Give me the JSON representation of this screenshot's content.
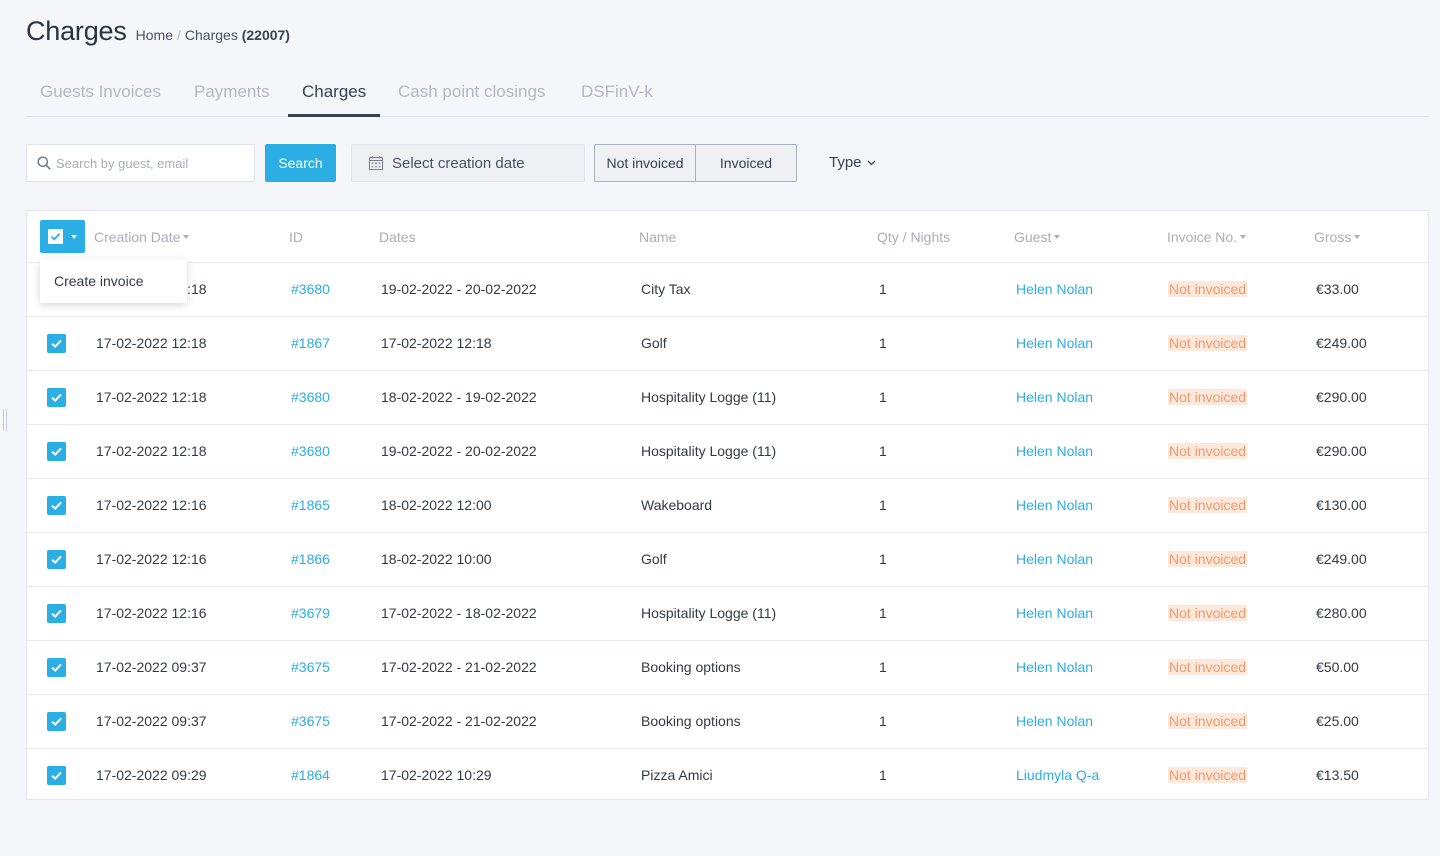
{
  "page": {
    "title": "Charges"
  },
  "breadcrumb": {
    "home": "Home",
    "separator": "/",
    "current": "Charges",
    "count": "(22007)"
  },
  "tabs": [
    {
      "label": "Guests Invoices",
      "active": false
    },
    {
      "label": "Payments",
      "active": false
    },
    {
      "label": "Charges",
      "active": true
    },
    {
      "label": "Cash point closings",
      "active": false
    },
    {
      "label": "DSFinV-k",
      "active": false
    }
  ],
  "toolbar": {
    "search_placeholder": "Search by guest, email",
    "search_label": "Search",
    "date_label": "Select creation date",
    "filter_not_invoiced": "Not invoiced",
    "filter_invoiced": "Invoiced",
    "type_label": "Type"
  },
  "table": {
    "columns": {
      "creation_date": "Creation Date",
      "id": "ID",
      "dates": "Dates",
      "name": "Name",
      "qty": "Qty / Nights",
      "guest": "Guest",
      "invoice_no": "Invoice No.",
      "gross": "Gross"
    },
    "bulk_menu": {
      "create_invoice": "Create invoice"
    },
    "rows": [
      {
        "checked": true,
        "created": "17-02-2022 12:18",
        "id": "#3680",
        "dates": "19-02-2022 - 20-02-2022",
        "name": "City Tax",
        "qty": "1",
        "guest": "Helen Nolan",
        "invoice": "Not invoiced",
        "gross": "€33.00"
      },
      {
        "checked": true,
        "created": "17-02-2022 12:18",
        "id": "#1867",
        "dates": "17-02-2022 12:18",
        "name": "Golf",
        "qty": "1",
        "guest": "Helen Nolan",
        "invoice": "Not invoiced",
        "gross": "€249.00"
      },
      {
        "checked": true,
        "created": "17-02-2022 12:18",
        "id": "#3680",
        "dates": "18-02-2022 - 19-02-2022",
        "name": "Hospitality Logge (11)",
        "qty": "1",
        "guest": "Helen Nolan",
        "invoice": "Not invoiced",
        "gross": "€290.00"
      },
      {
        "checked": true,
        "created": "17-02-2022 12:18",
        "id": "#3680",
        "dates": "19-02-2022 - 20-02-2022",
        "name": "Hospitality Logge (11)",
        "qty": "1",
        "guest": "Helen Nolan",
        "invoice": "Not invoiced",
        "gross": "€290.00"
      },
      {
        "checked": true,
        "created": "17-02-2022 12:16",
        "id": "#1865",
        "dates": "18-02-2022 12:00",
        "name": "Wakeboard",
        "qty": "1",
        "guest": "Helen Nolan",
        "invoice": "Not invoiced",
        "gross": "€130.00"
      },
      {
        "checked": true,
        "created": "17-02-2022 12:16",
        "id": "#1866",
        "dates": "18-02-2022 10:00",
        "name": "Golf",
        "qty": "1",
        "guest": "Helen Nolan",
        "invoice": "Not invoiced",
        "gross": "€249.00"
      },
      {
        "checked": true,
        "created": "17-02-2022 12:16",
        "id": "#3679",
        "dates": "17-02-2022 - 18-02-2022",
        "name": "Hospitality Logge (11)",
        "qty": "1",
        "guest": "Helen Nolan",
        "invoice": "Not invoiced",
        "gross": "€280.00"
      },
      {
        "checked": true,
        "created": "17-02-2022 09:37",
        "id": "#3675",
        "dates": "17-02-2022 - 21-02-2022",
        "name": "Booking options",
        "qty": "1",
        "guest": "Helen Nolan",
        "invoice": "Not invoiced",
        "gross": "€50.00"
      },
      {
        "checked": true,
        "created": "17-02-2022 09:37",
        "id": "#3675",
        "dates": "17-02-2022 - 21-02-2022",
        "name": "Booking options",
        "qty": "1",
        "guest": "Helen Nolan",
        "invoice": "Not invoiced",
        "gross": "€25.00"
      },
      {
        "checked": true,
        "created": "17-02-2022 09:29",
        "id": "#1864",
        "dates": "17-02-2022 10:29",
        "name": "Pizza Amici",
        "qty": "1",
        "guest": "Liudmyla Q-a",
        "invoice": "Not invoiced",
        "gross": "€13.50"
      }
    ]
  },
  "colors": {
    "accent": "#2aaee4",
    "badge_bg": "#fde8dc",
    "badge_text": "#f39a6d"
  }
}
